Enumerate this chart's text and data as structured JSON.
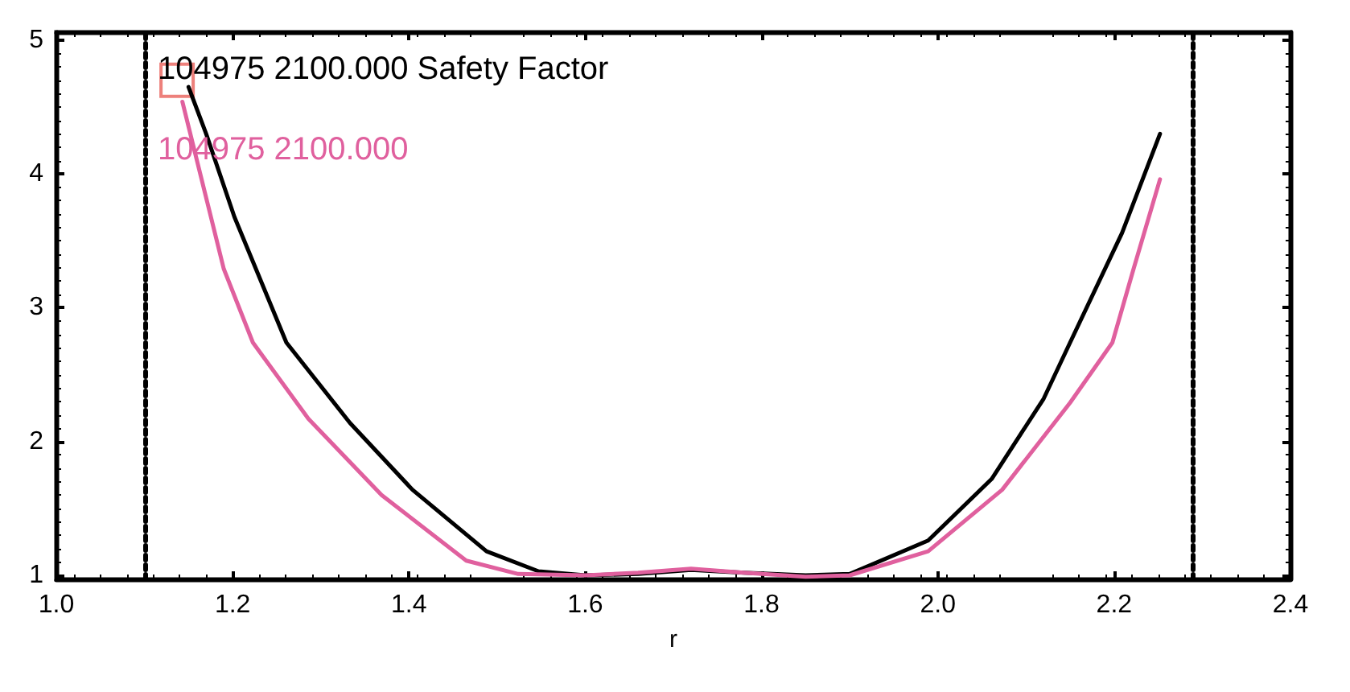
{
  "chart_data": {
    "type": "line",
    "xlabel": "r",
    "xlim": [
      1.0,
      2.4
    ],
    "ylim": [
      0.97,
      5.06
    ],
    "xticks": [
      {
        "value": 1.0,
        "label": "1.0"
      },
      {
        "value": 1.2,
        "label": "1.2"
      },
      {
        "value": 1.4,
        "label": "1.4"
      },
      {
        "value": 1.6,
        "label": "1.6"
      },
      {
        "value": 1.8,
        "label": "1.8"
      },
      {
        "value": 2.0,
        "label": "2.0"
      },
      {
        "value": 2.2,
        "label": "2.2"
      },
      {
        "value": 2.4,
        "label": "2.4"
      }
    ],
    "yticks": [
      1,
      2,
      3,
      4,
      5
    ],
    "grid": false,
    "legend": "top left",
    "marker": "none",
    "line_style": "solid",
    "series": [
      {
        "name": "104975 2100.000 Safety Factor",
        "color": "#000000",
        "x": [
          1.15,
          1.17,
          1.202,
          1.261,
          1.333,
          1.404,
          1.488,
          1.547,
          1.6,
          1.66,
          1.72,
          1.78,
          1.85,
          1.9,
          1.989,
          2.061,
          2.12,
          2.15,
          2.209,
          2.252
        ],
        "values": [
          4.65,
          4.3,
          3.68,
          2.74,
          2.14,
          1.64,
          1.18,
          1.03,
          1.0,
          1.01,
          1.04,
          1.02,
          1.0,
          1.01,
          1.26,
          1.72,
          2.32,
          2.74,
          3.56,
          4.3
        ]
      },
      {
        "name": "104975 2100.000",
        "color": "#e0609e",
        "x": [
          1.143,
          1.19,
          1.223,
          1.286,
          1.369,
          1.465,
          1.524,
          1.6,
          1.66,
          1.72,
          1.78,
          1.85,
          1.9,
          1.989,
          2.073,
          2.15,
          2.198,
          2.222,
          2.252
        ],
        "values": [
          4.54,
          3.29,
          2.74,
          2.17,
          1.6,
          1.11,
          1.01,
          1.0,
          1.02,
          1.05,
          1.02,
          0.99,
          1.0,
          1.18,
          1.64,
          2.29,
          2.74,
          3.29,
          3.96
        ]
      },
      {
        "type": "scatter",
        "marker": "square",
        "color": "#e8605a",
        "x": [
          1.137
        ],
        "values": [
          4.7
        ]
      }
    ],
    "ref_lines": [
      {
        "axis": "x",
        "value": 1.1,
        "line_style": "dotted",
        "color": "#000000"
      },
      {
        "axis": "x",
        "value": 2.29,
        "line_style": "dotted",
        "color": "#000000"
      }
    ]
  }
}
